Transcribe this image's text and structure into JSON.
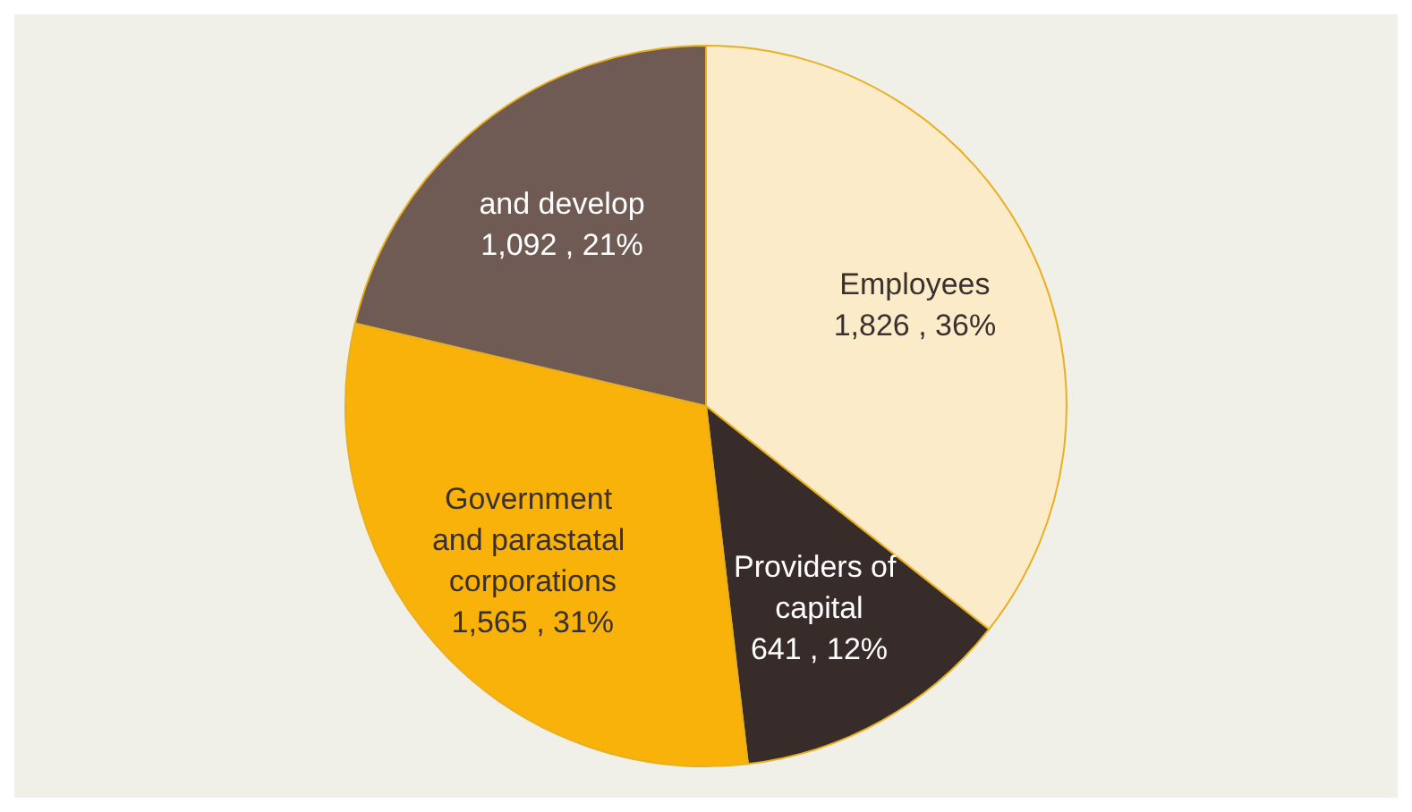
{
  "chart_data": {
    "type": "pie",
    "categories": [
      "Employees",
      "Providers of capital",
      "Government and parastatal corporations",
      "and develop"
    ],
    "values": [
      1826,
      641,
      1565,
      1092
    ],
    "colors": [
      "#fbebc9",
      "#372c2a",
      "#f8b20a",
      "#6f5b54"
    ],
    "value_labels": [
      "1,826 , 36%",
      "641 , 12%",
      "1,565 , 31%",
      "1,092 , 21%"
    ],
    "legend": false
  }
}
